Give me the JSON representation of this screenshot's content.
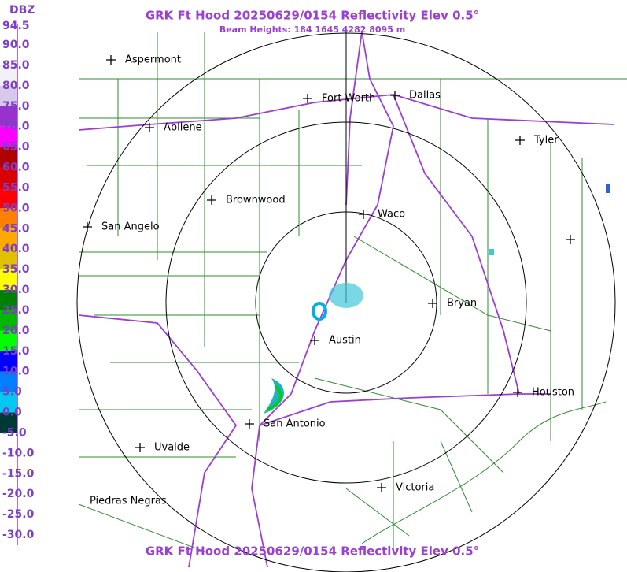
{
  "header": {
    "title": "GRK Ft Hood 20250629/0154 Reflectivity Elev 0.5°",
    "subtitle": "Beam Heights: 184 1645 4282 8095 m",
    "footer_title": "GRK Ft Hood 20250629/0154 Reflectivity Elev 0.5°"
  },
  "legend": {
    "unit": "DBZ",
    "labels": [
      "94.5",
      "90.0",
      "85.0",
      "80.0",
      "75.0",
      "70.0",
      "65.0",
      "60.0",
      "55.0",
      "50.0",
      "45.0",
      "40.0",
      "35.0",
      "30.0",
      "25.0",
      "20.0",
      "15.0",
      "10.0",
      "5.0",
      "0.0",
      "-5.0",
      "-10.0",
      "-15.0",
      "-20.0",
      "-25.0",
      "-30.0"
    ]
  },
  "cities": [
    "Aspermont",
    "Fort Worth",
    "Dallas",
    "Abilene",
    "Tyler",
    "Brownwood",
    "Waco",
    "San Angelo",
    "Bryan",
    "Austin",
    "Houston",
    "San Antonio",
    "Uvalde",
    "Victoria",
    "Piedras Negras"
  ]
}
